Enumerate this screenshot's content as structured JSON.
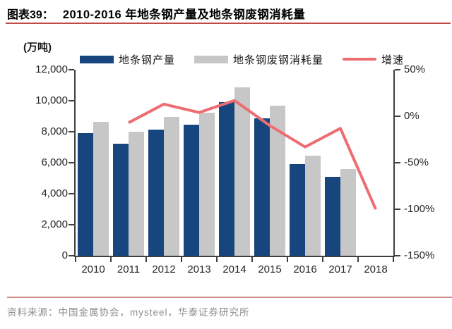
{
  "figure": {
    "label": "图表39：",
    "title": "2010-2016 年地条钢产量及地条钢废钢消耗量",
    "source": "资料来源：中国金属协会，mysteel，华泰证券研究所"
  },
  "chart_data": {
    "type": "bar",
    "subtype": "grouped-bars-with-secondary-axis-line",
    "title": "2010-2016 年地条钢产量及地条钢废钢消耗量",
    "unit_label": "(万吨)",
    "categories": [
      "2010",
      "2011",
      "2012",
      "2013",
      "2014",
      "2015",
      "2016",
      "2017",
      "2018"
    ],
    "series": [
      {
        "name": "地条钢产量",
        "type": "bar",
        "axis": "left",
        "color": "#17457E",
        "values": [
          7900,
          7250,
          8150,
          8450,
          9900,
          8850,
          5900,
          5100,
          null
        ]
      },
      {
        "name": "地条钢废钢消耗量",
        "type": "bar",
        "axis": "left",
        "color": "#C7C7C7",
        "values": [
          8650,
          8000,
          8950,
          9250,
          10850,
          9700,
          6450,
          5600,
          null
        ]
      },
      {
        "name": "增速",
        "type": "line",
        "axis": "right",
        "color": "#EC6E72",
        "values_pct": [
          null,
          -7,
          13,
          4,
          17,
          -10,
          -33,
          -13,
          -100
        ]
      }
    ],
    "left_axis": {
      "min": 0,
      "max": 12000,
      "step": 2000,
      "tick_labels": [
        "0",
        "2,000",
        "4,000",
        "6,000",
        "8,000",
        "10,000",
        "12,000"
      ]
    },
    "right_axis": {
      "min": -150,
      "max": 50,
      "step": 50,
      "tick_labels_top_down": [
        "50%",
        "0%",
        "-50%",
        "-100%",
        "-150%"
      ]
    },
    "legend_position": "top",
    "grid": false
  },
  "colors": {
    "title_rule": "#BE4B48",
    "footer_rule": "#CD8C89",
    "axis": "#3F3F3F"
  }
}
